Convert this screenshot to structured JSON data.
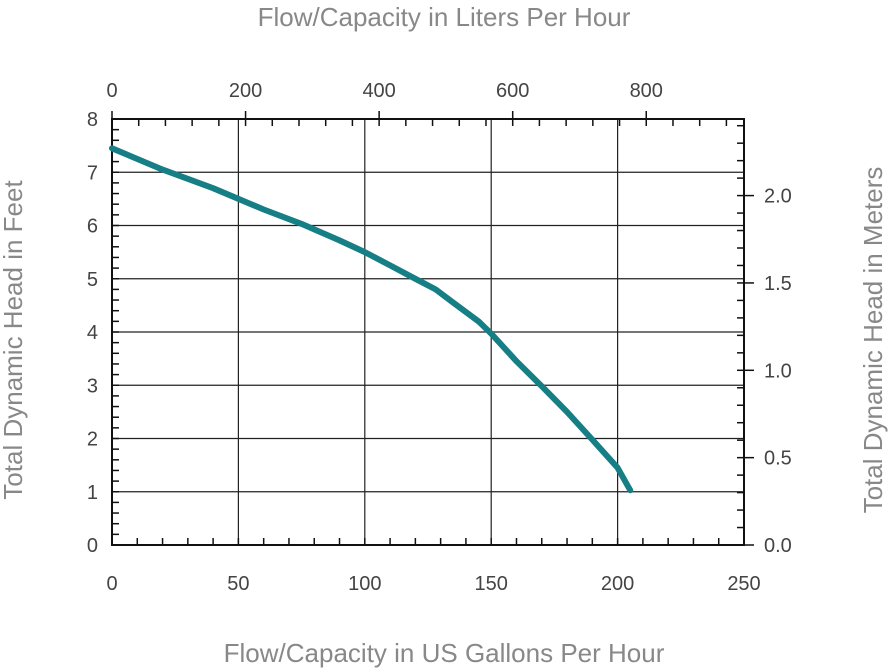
{
  "chart_data": {
    "type": "line",
    "title": "",
    "xlabel": "Flow/Capacity in US Gallons Per Hour",
    "x2label": "Flow/Capacity in Liters Per Hour",
    "ylabel": "Total Dynamic Head in Feet",
    "y2label": "Total Dynamic Head in Meters",
    "xlim": [
      0,
      250
    ],
    "ylim": [
      0,
      8
    ],
    "x2lim": [
      0,
      946.35
    ],
    "y2lim": [
      0,
      2.4384
    ],
    "grid": true,
    "x_ticks": [
      0,
      50,
      100,
      150,
      200,
      250
    ],
    "x_tick_labels": [
      "0",
      "50",
      "100",
      "150",
      "200",
      "250"
    ],
    "y_ticks": [
      0,
      1,
      2,
      3,
      4,
      5,
      6,
      7,
      8
    ],
    "y_tick_labels": [
      "0",
      "1",
      "2",
      "3",
      "4",
      "5",
      "6",
      "7",
      "8"
    ],
    "x2_ticks": [
      0,
      200,
      400,
      600,
      800
    ],
    "x2_tick_labels": [
      "0",
      "200",
      "400",
      "600",
      "800"
    ],
    "y2_ticks": [
      0.0,
      0.5,
      1.0,
      1.5,
      2.0
    ],
    "y2_tick_labels": [
      "0.0",
      "0.5",
      "1.0",
      "1.5",
      "2.0"
    ],
    "series": [
      {
        "color": "#167E85",
        "x": [
          0,
          20,
          40,
          60,
          75,
          90,
          100,
          110,
          120,
          128,
          135,
          145,
          150,
          160,
          170,
          180,
          190,
          200,
          205
        ],
        "y": [
          7.45,
          7.05,
          6.7,
          6.3,
          6.03,
          5.72,
          5.5,
          5.25,
          5.0,
          4.8,
          4.55,
          4.2,
          3.97,
          3.45,
          2.98,
          2.5,
          1.98,
          1.45,
          1.03
        ]
      }
    ]
  }
}
